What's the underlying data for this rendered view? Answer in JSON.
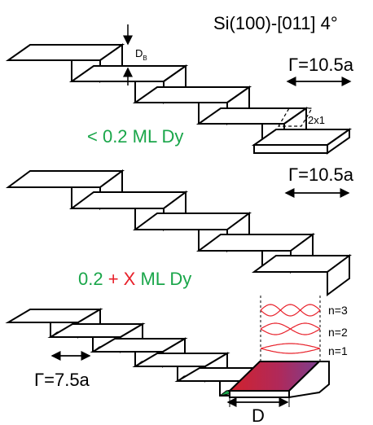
{
  "title": "Si(100)-[011] 4°",
  "step_height_label": "D",
  "step_height_sub": "B",
  "reconstruction_label": "2x1",
  "gamma_top": "Γ=10.5a",
  "gamma_middle": "Γ=10.5a",
  "gamma_bottom": "Γ=7.5a",
  "coverage_low": "< 0.2 ML Dy",
  "coverage_high": {
    "prefix": "0.2",
    "plus": " + ",
    "x": "X",
    "suffix": " ML Dy"
  },
  "terrace_width_label": "D",
  "modes": [
    "n=3",
    "n=2",
    "n=1"
  ],
  "colors": {
    "wire_green": "#1aa64a",
    "label_red": "#e8202a",
    "terrace_grad_start": "#d2222c",
    "terrace_grad_end": "#7b3f8f"
  }
}
